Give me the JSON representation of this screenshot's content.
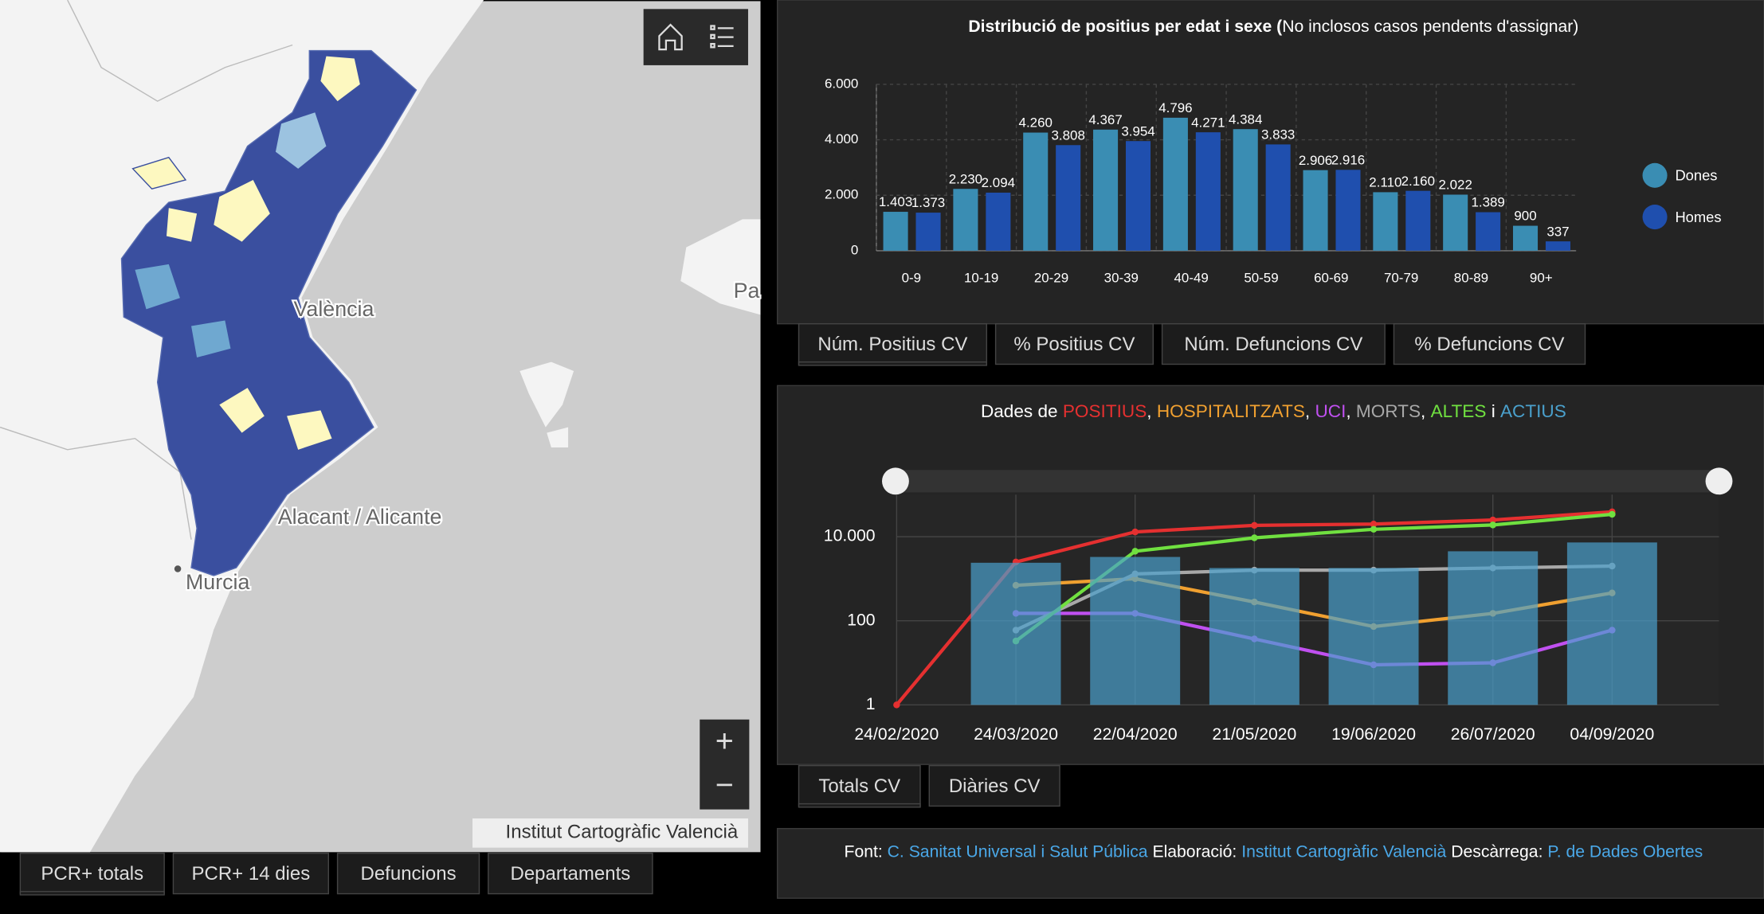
{
  "map": {
    "labels": [
      "València",
      "Alacant / Alicante",
      "Murcia",
      "Pa"
    ],
    "attribution": "Institut Cartogràfic Valencià",
    "zoom_in": "+",
    "zoom_out": "−",
    "tabs": [
      "PCR+ totals",
      "PCR+ 14 dies",
      "Defuncions",
      "Departaments"
    ]
  },
  "age_chart": {
    "type": "bar",
    "title": "Distribució de positius per edat i sexe (",
    "subtitle": "No inclosos casos pendents d'assignar)",
    "categories": [
      "0-9",
      "10-19",
      "20-29",
      "30-39",
      "40-49",
      "50-59",
      "60-69",
      "70-79",
      "80-89",
      "90+"
    ],
    "series": [
      {
        "name": "Dones",
        "color": "#3a8db3",
        "values": [
          1403,
          2230,
          4260,
          4367,
          4796,
          4384,
          2906,
          2110,
          2022,
          900
        ],
        "value_labels": [
          "1.403",
          "2.230",
          "4.260",
          "4.367",
          "4.796",
          "4.384",
          "2.906",
          "2.110",
          "2.022",
          "900"
        ]
      },
      {
        "name": "Homes",
        "color": "#1f4fae",
        "values": [
          1373,
          2094,
          3808,
          3954,
          4271,
          3833,
          2916,
          2160,
          1389,
          337
        ],
        "value_labels": [
          "1.373",
          "2.094",
          "3.808",
          "3.954",
          "4.271",
          "3.833",
          "2.916",
          "2.160",
          "1.389",
          "337"
        ]
      }
    ],
    "ylim": [
      0,
      6000
    ],
    "yticks": [
      0,
      {
        "value": 2000,
        "label": "2.000"
      },
      {
        "value": 4000,
        "label": "4.000"
      },
      {
        "value": 6000,
        "label": "6.000"
      }
    ],
    "grid": true,
    "tabs": [
      "Núm. Positius CV",
      "% Positius CV",
      "Núm. Defuncions CV",
      "% Defuncions CV"
    ]
  },
  "time_chart": {
    "type": "line",
    "title_prefix": "Dades de ",
    "title_separators": [
      ", ",
      ", ",
      ", ",
      ", ",
      " i "
    ],
    "categories": [
      "24/02/2020",
      "24/03/2020",
      "22/04/2020",
      "21/05/2020",
      "19/06/2020",
      "26/07/2020",
      "04/09/2020"
    ],
    "log_scale": true,
    "ylim": [
      1,
      100000
    ],
    "yticks": [
      1,
      100,
      {
        "value": 10000,
        "label": "10.000"
      }
    ],
    "series": [
      {
        "name": "POSITIUS",
        "color": "#e53030",
        "kind": "line",
        "values": [
          1,
          2500,
          13000,
          18600,
          20000,
          25000,
          39000
        ]
      },
      {
        "name": "HOSPITALITZATS",
        "color": "#f0a030",
        "kind": "line",
        "values": [
          null,
          700,
          1000,
          280,
          73,
          150,
          460
        ]
      },
      {
        "name": "UCI",
        "color": "#c050f0",
        "kind": "line",
        "values": [
          null,
          150,
          150,
          37,
          9,
          10,
          60
        ]
      },
      {
        "name": "MORTS",
        "color": "#a8a8a8",
        "kind": "line",
        "values": [
          null,
          60,
          1300,
          1600,
          1600,
          1800,
          2000
        ]
      },
      {
        "name": "ALTES",
        "color": "#70e040",
        "kind": "line",
        "values": [
          null,
          33,
          4500,
          9400,
          15000,
          19000,
          34000
        ]
      },
      {
        "name": "ACTIUS",
        "color": "#4aa0cc",
        "kind": "bar",
        "values": [
          1,
          2400,
          3300,
          1800,
          1800,
          4500,
          7300
        ]
      }
    ],
    "tabs": [
      "Totals CV",
      "Diàries CV"
    ]
  },
  "footer": [
    "Font:",
    "C. Sanitat Universal i Salut Pública",
    "Elaboració:",
    "Institut Cartogràfic Valencià",
    "Descàrrega:",
    "P. de Dades Obertes"
  ]
}
